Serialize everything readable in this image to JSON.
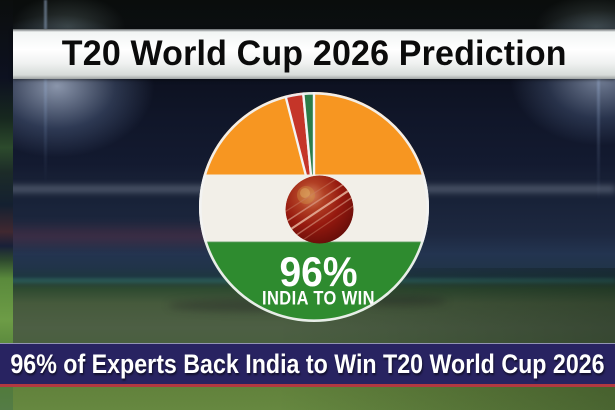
{
  "title_banner": {
    "text": "T20 World Cup 2026 Prediction",
    "text_color": "#0b0b0b",
    "background": "#ffffff"
  },
  "footer_banner": {
    "text": "96% of Experts Back India to Win T20 World Cup 2026",
    "text_color": "#ffffff",
    "background": "#282361",
    "accent_line_color": "#b23940"
  },
  "chart_data": {
    "type": "pie",
    "title": "T20 World Cup 2026 Prediction",
    "slices": [
      {
        "label": "India to win",
        "value": 96,
        "color": "india-flag-bands"
      },
      {
        "label": "Other contender (red wedge)",
        "value": 2.5,
        "color": "#c53529"
      },
      {
        "label": "Other contender (green wedge)",
        "value": 1.5,
        "color": "#2b7d48"
      }
    ],
    "start_angle_deg": 0,
    "direction": "clockwise",
    "legend": "none",
    "center_label": "96%",
    "center_caption": "INDIA TO WIN",
    "center_icon": "cricket-ball-icon",
    "flag_colors": {
      "saffron": "#f79621",
      "white": "#f2efe8",
      "green": "#2e8b2f"
    },
    "rim_color": "#f2f2f2"
  },
  "background": {
    "scene": "night cricket stadium with floodlights, stands and green outfield",
    "sky_color": "#0d1120",
    "field_color": "#62823c"
  }
}
